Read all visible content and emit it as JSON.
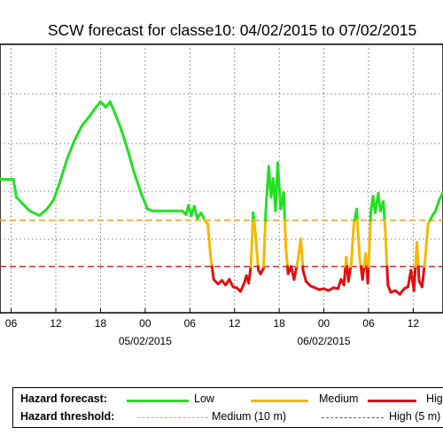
{
  "chart_data": {
    "type": "line",
    "title": "SCW forecast for classe10: 04/02/2015 to 07/02/2015",
    "xlabel": "",
    "ylabel": "",
    "grid": true,
    "x_ticks": [
      {
        "hour": -6,
        "label": "06"
      },
      {
        "hour": 0,
        "label": "12"
      },
      {
        "hour": 6,
        "label": "18"
      },
      {
        "hour": 12,
        "label": "00"
      },
      {
        "hour": 18,
        "label": "06"
      },
      {
        "hour": 24,
        "label": "12"
      },
      {
        "hour": 30,
        "label": "18"
      },
      {
        "hour": 36,
        "label": "00"
      },
      {
        "hour": 42,
        "label": "06"
      },
      {
        "hour": 48,
        "label": "12"
      }
    ],
    "date_labels": [
      {
        "hour": 12,
        "label": "05/02/2015"
      },
      {
        "hour": 36,
        "label": "06/02/2015"
      }
    ],
    "x_hour_axis_note": "hours relative to 12:00 on 04/02/2015",
    "xlim": [
      -7.5,
      52
    ],
    "ylim": [
      0,
      29
    ],
    "thresholds": [
      {
        "name": "Medium (10 m)",
        "value": 10,
        "color": "#e8a33a"
      },
      {
        "name": "High (5 m)",
        "value": 5,
        "color": "#c8323c"
      }
    ],
    "series": [
      {
        "name": "Hazard forecast",
        "colors": {
          "low": "#22e022",
          "medium": "#f5b800",
          "high": "#e01010"
        },
        "points": [
          [
            -7.5,
            14.4
          ],
          [
            -5.7,
            14.4
          ],
          [
            -5.3,
            12.5
          ],
          [
            -4.5,
            11.8
          ],
          [
            -3.5,
            11.0
          ],
          [
            -2.2,
            10.5
          ],
          [
            -1.2,
            11.2
          ],
          [
            -0.3,
            12.2
          ],
          [
            0.5,
            14.0
          ],
          [
            1.5,
            16.6
          ],
          [
            2.5,
            18.6
          ],
          [
            3.5,
            20.2
          ],
          [
            4.5,
            21.2
          ],
          [
            5.2,
            22.0
          ],
          [
            6.0,
            22.8
          ],
          [
            6.7,
            22.2
          ],
          [
            7.3,
            22.8
          ],
          [
            8.0,
            21.4
          ],
          [
            8.7,
            20.0
          ],
          [
            9.5,
            18.0
          ],
          [
            10.5,
            15.2
          ],
          [
            11.5,
            12.8
          ],
          [
            12.3,
            11.2
          ],
          [
            13.0,
            11.0
          ],
          [
            14.5,
            11.0
          ],
          [
            16.0,
            11.0
          ],
          [
            17.0,
            11.0
          ],
          [
            17.5,
            10.6
          ],
          [
            17.8,
            11.6
          ],
          [
            18.2,
            10.5
          ],
          [
            18.6,
            11.5
          ],
          [
            19.0,
            10.2
          ],
          [
            19.5,
            10.8
          ],
          [
            20.0,
            10.0
          ],
          [
            20.4,
            9.6
          ],
          [
            20.8,
            6.0
          ],
          [
            21.2,
            3.6
          ],
          [
            21.8,
            3.1
          ],
          [
            22.3,
            3.5
          ],
          [
            22.8,
            3.0
          ],
          [
            23.3,
            3.6
          ],
          [
            23.8,
            2.8
          ],
          [
            24.3,
            2.7
          ],
          [
            24.8,
            2.3
          ],
          [
            25.3,
            3.2
          ],
          [
            25.6,
            4.0
          ],
          [
            25.9,
            3.2
          ],
          [
            26.2,
            5.0
          ],
          [
            26.5,
            10.8
          ],
          [
            26.8,
            8.6
          ],
          [
            27.2,
            4.6
          ],
          [
            27.5,
            4.2
          ],
          [
            27.9,
            4.8
          ],
          [
            28.2,
            11.0
          ],
          [
            28.6,
            15.8
          ],
          [
            28.9,
            12.5
          ],
          [
            29.2,
            14.5
          ],
          [
            29.5,
            11.0
          ],
          [
            29.8,
            16.2
          ],
          [
            30.2,
            11.2
          ],
          [
            30.6,
            13.0
          ],
          [
            30.9,
            7.0
          ],
          [
            31.2,
            4.2
          ],
          [
            31.6,
            5.0
          ],
          [
            32.0,
            3.6
          ],
          [
            32.5,
            5.6
          ],
          [
            32.9,
            8.0
          ],
          [
            33.2,
            4.6
          ],
          [
            33.6,
            3.4
          ],
          [
            34.2,
            2.9
          ],
          [
            34.8,
            2.7
          ],
          [
            35.4,
            2.5
          ],
          [
            36.0,
            2.6
          ],
          [
            36.6,
            2.4
          ],
          [
            37.3,
            2.7
          ],
          [
            37.9,
            2.6
          ],
          [
            38.3,
            3.6
          ],
          [
            38.7,
            3.0
          ],
          [
            39.0,
            6.0
          ],
          [
            39.3,
            3.4
          ],
          [
            39.7,
            5.5
          ],
          [
            40.0,
            9.4
          ],
          [
            40.4,
            11.2
          ],
          [
            40.8,
            6.0
          ],
          [
            41.2,
            3.6
          ],
          [
            41.6,
            6.4
          ],
          [
            41.9,
            3.2
          ],
          [
            42.3,
            10.8
          ],
          [
            42.6,
            12.6
          ],
          [
            42.9,
            10.8
          ],
          [
            43.3,
            12.9
          ],
          [
            43.6,
            11.0
          ],
          [
            44.0,
            12.0
          ],
          [
            44.3,
            8.0
          ],
          [
            44.6,
            3.0
          ],
          [
            45.0,
            2.2
          ],
          [
            45.6,
            2.4
          ],
          [
            46.2,
            2.0
          ],
          [
            46.8,
            2.6
          ],
          [
            47.3,
            2.8
          ],
          [
            47.7,
            4.6
          ],
          [
            48.1,
            2.4
          ],
          [
            48.5,
            7.6
          ],
          [
            48.8,
            3.4
          ],
          [
            49.2,
            2.8
          ],
          [
            49.6,
            5.8
          ],
          [
            50.0,
            9.6
          ],
          [
            50.5,
            10.4
          ],
          [
            51.0,
            11.0
          ],
          [
            51.5,
            12.2
          ],
          [
            52.0,
            13.0
          ]
        ]
      }
    ],
    "legend": {
      "placement": "bottom",
      "rows": [
        {
          "title": "Hazard forecast:",
          "items": [
            {
              "label": "Low",
              "color": "#22e022",
              "style": "solid"
            },
            {
              "label": "Medium",
              "color": "#f5b800",
              "style": "solid"
            },
            {
              "label": "High",
              "color": "#e01010",
              "style": "solid"
            }
          ]
        },
        {
          "title": "Hazard threshold:",
          "items": [
            {
              "label": "Medium (10 m)",
              "color": "#e8a33a",
              "style": "dashed"
            },
            {
              "label": "High (5 m)",
              "color": "#c8323c",
              "style": "dashed"
            }
          ]
        }
      ]
    }
  }
}
